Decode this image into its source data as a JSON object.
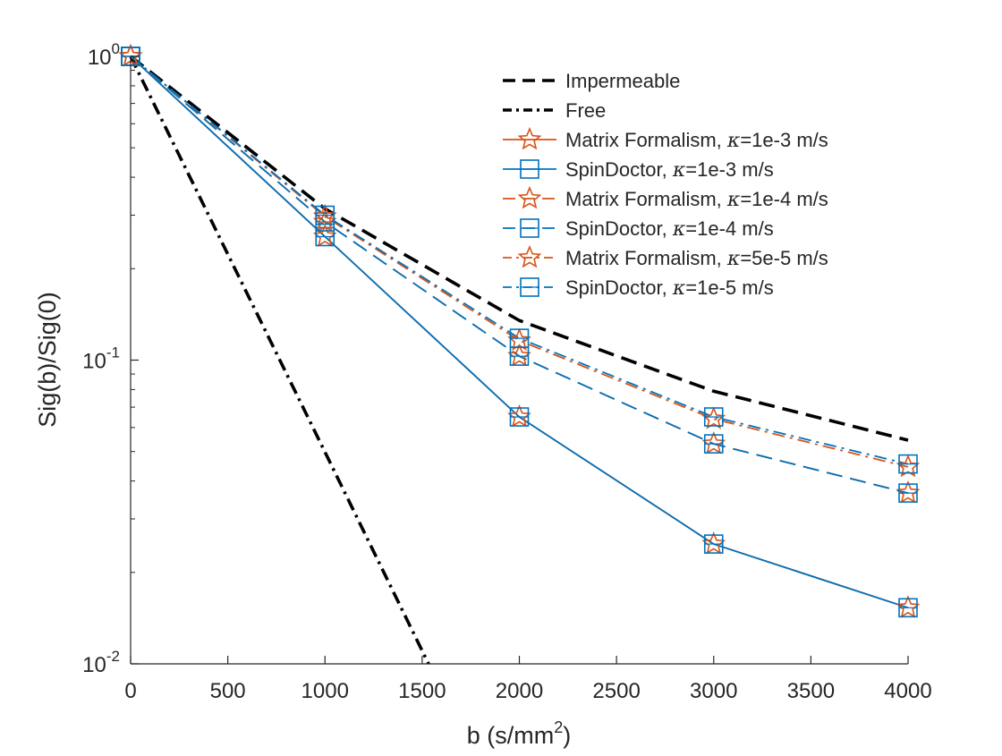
{
  "chart_data": {
    "type": "line",
    "title": "",
    "xlabel": "b (s/mm",
    "xlabel_sup": "2",
    "xlabel_close": ")",
    "ylabel": "Sig(b)/Sig(0)",
    "xlim": [
      0,
      4000
    ],
    "ylim": [
      0.01,
      1
    ],
    "yscale": "log",
    "grid": false,
    "legend_position": "top-right",
    "x_ticks": [
      0,
      500,
      1000,
      1500,
      2000,
      2500,
      3000,
      3500,
      4000
    ],
    "x_tick_labels": [
      "0",
      "500",
      "1000",
      "1500",
      "2000",
      "2500",
      "3000",
      "3500",
      "4000"
    ],
    "y_ticks": [
      {
        "value": 1,
        "base": "10",
        "exp": "0"
      },
      {
        "value": 0.1,
        "base": "10",
        "exp": "-1"
      },
      {
        "value": 0.01,
        "base": "10",
        "exp": "-2"
      }
    ],
    "series": [
      {
        "name": "Impermeable",
        "color": "#000000",
        "dash": "dashed",
        "marker": "none",
        "x": [
          0,
          1000,
          2000,
          3000,
          4000
        ],
        "y": [
          1.0,
          0.315,
          0.135,
          0.079,
          0.0545
        ]
      },
      {
        "name": "Free",
        "color": "#000000",
        "dash": "dashdot",
        "marker": "none",
        "x": [
          0,
          1000,
          1550
        ],
        "y": [
          1.0,
          0.0498,
          0.0095
        ]
      },
      {
        "name": "Matrix Formalism, ",
        "kappa": "=1e-3 m/s",
        "color": "#d95319",
        "dash": "solid",
        "marker": "star",
        "x": [
          0,
          1000,
          2000,
          3000,
          4000
        ],
        "y": [
          1.0,
          0.255,
          0.065,
          0.0248,
          0.0153
        ]
      },
      {
        "name": "SpinDoctor, ",
        "kappa": "=1e-3 m/s",
        "color": "#0072bd",
        "dash": "solid",
        "marker": "square",
        "x": [
          0,
          1000,
          2000,
          3000,
          4000
        ],
        "y": [
          1.0,
          0.255,
          0.065,
          0.0248,
          0.0153
        ]
      },
      {
        "name": "Matrix Formalism, ",
        "kappa": "=1e-4 m/s",
        "color": "#d95319",
        "dash": "dashed",
        "marker": "star",
        "x": [
          0,
          1000,
          2000,
          3000,
          4000
        ],
        "y": [
          1.0,
          0.285,
          0.103,
          0.053,
          0.0365
        ]
      },
      {
        "name": "SpinDoctor, ",
        "kappa": "=1e-4 m/s",
        "color": "#0072bd",
        "dash": "dashed",
        "marker": "square",
        "x": [
          0,
          1000,
          2000,
          3000,
          4000
        ],
        "y": [
          1.0,
          0.285,
          0.103,
          0.053,
          0.0365
        ]
      },
      {
        "name": "Matrix Formalism, ",
        "kappa": "=5e-5 m/s",
        "color": "#d95319",
        "dash": "dashdot",
        "marker": "star",
        "x": [
          0,
          1000,
          2000,
          3000,
          4000
        ],
        "y": [
          1.0,
          0.297,
          0.116,
          0.064,
          0.0445
        ]
      },
      {
        "name": "SpinDoctor, ",
        "kappa": "=1e-5 m/s",
        "color": "#0072bd",
        "dash": "dashdot",
        "marker": "square",
        "x": [
          0,
          1000,
          2000,
          3000,
          4000
        ],
        "y": [
          1.0,
          0.3,
          0.118,
          0.065,
          0.0455
        ]
      }
    ],
    "kappa_symbol": "κ"
  }
}
